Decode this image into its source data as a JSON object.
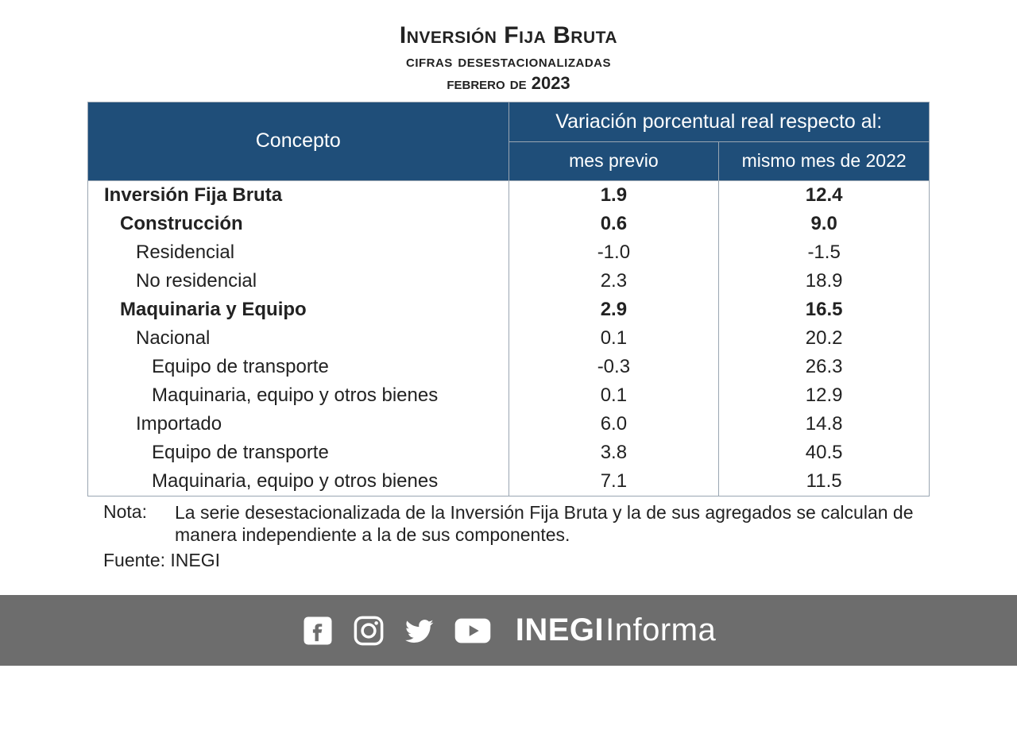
{
  "title": {
    "line1": "Inversión Fija Bruta",
    "line2": "cifras desestacionalizadas",
    "line3_prefix": "febrero de ",
    "line3_year": "2023"
  },
  "colors": {
    "header_bg": "#1f4e79",
    "header_text": "#ffffff",
    "border": "#9aa6b2",
    "body_text": "#222222",
    "footer_bg": "#6d6d6d",
    "footer_icon": "#ffffff",
    "page_bg": "#ffffff"
  },
  "table": {
    "concept_header": "Concepto",
    "super_header": "Variación porcentual real respecto al:",
    "sub_headers": [
      "mes previo",
      "mismo mes de 2022"
    ],
    "col_widths_pct": [
      50,
      25,
      25
    ],
    "rows": [
      {
        "label": "Inversión Fija Bruta",
        "v1": "1.9",
        "v2": "12.4",
        "bold": true,
        "indent": 0
      },
      {
        "label": "Construcción",
        "v1": "0.6",
        "v2": "9.0",
        "bold": true,
        "indent": 1
      },
      {
        "label": "Residencial",
        "v1": "-1.0",
        "v2": "-1.5",
        "bold": false,
        "indent": 2
      },
      {
        "label": "No residencial",
        "v1": "2.3",
        "v2": "18.9",
        "bold": false,
        "indent": 2
      },
      {
        "label": "Maquinaria y Equipo",
        "v1": "2.9",
        "v2": "16.5",
        "bold": true,
        "indent": 1
      },
      {
        "label": "Nacional",
        "v1": "0.1",
        "v2": "20.2",
        "bold": false,
        "indent": 2
      },
      {
        "label": "Equipo de transporte",
        "v1": "-0.3",
        "v2": "26.3",
        "bold": false,
        "indent": 3
      },
      {
        "label": "Maquinaria, equipo y otros bienes",
        "v1": "0.1",
        "v2": "12.9",
        "bold": false,
        "indent": 3
      },
      {
        "label": "Importado",
        "v1": "6.0",
        "v2": "14.8",
        "bold": false,
        "indent": 2
      },
      {
        "label": "Equipo de transporte",
        "v1": "3.8",
        "v2": "40.5",
        "bold": false,
        "indent": 3
      },
      {
        "label": "Maquinaria, equipo y otros bienes",
        "v1": "7.1",
        "v2": "11.5",
        "bold": false,
        "indent": 3
      }
    ]
  },
  "notes": {
    "label": "Nota:",
    "text": "La serie desestacionalizada de la Inversión Fija Bruta y la de sus agregados se calculan de manera independiente a la de sus componentes.",
    "source_label": "Fuente:",
    "source_value": "INEGI"
  },
  "footer": {
    "brand_bold": "INEGI",
    "brand_light": "Informa",
    "icons": [
      "facebook-icon",
      "instagram-icon",
      "twitter-icon",
      "youtube-icon"
    ],
    "icon_size": 42
  }
}
